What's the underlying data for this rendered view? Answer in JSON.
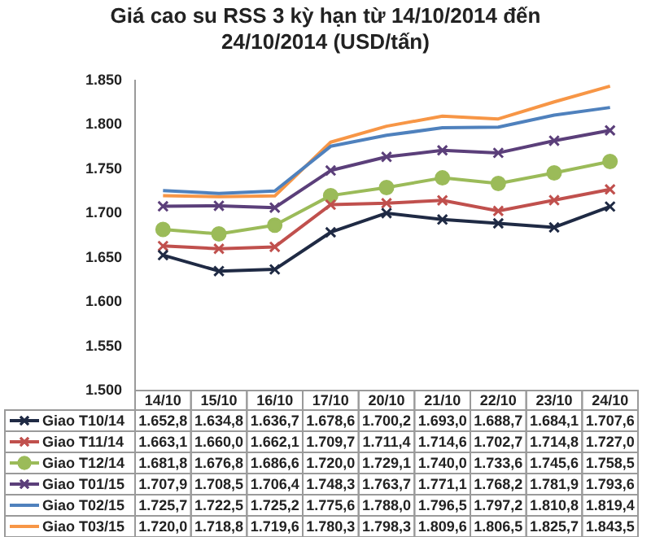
{
  "chart_data": {
    "type": "line",
    "title": "Giá cao su RSS 3 kỳ hạn từ 14/10/2014 đến 24/10/2014 (USD/tấn)",
    "categories": [
      "14/10",
      "15/10",
      "16/10",
      "17/10",
      "20/10",
      "21/10",
      "22/10",
      "23/10",
      "24/10"
    ],
    "ylim": [
      1500,
      1850
    ],
    "yticks": [
      {
        "value": 1500,
        "label": "1.500"
      },
      {
        "value": 1550,
        "label": "1.550"
      },
      {
        "value": 1600,
        "label": "1.600"
      },
      {
        "value": 1650,
        "label": "1.650"
      },
      {
        "value": 1700,
        "label": "1.700"
      },
      {
        "value": 1750,
        "label": "1.750"
      },
      {
        "value": 1800,
        "label": "1.800"
      },
      {
        "value": 1850,
        "label": "1.850"
      }
    ],
    "grid": false,
    "legend": "bottom",
    "line_style": "solid",
    "series": [
      {
        "name": "Giao T10/14",
        "color": "#1f2a44",
        "marker": "cross",
        "values": [
          1652.8,
          1634.8,
          1636.7,
          1678.6,
          1700.2,
          1693.0,
          1688.7,
          1684.1,
          1707.6
        ],
        "value_labels": [
          "1.652,8",
          "1.634,8",
          "1.636,7",
          "1.678,6",
          "1.700,2",
          "1.693,0",
          "1.688,7",
          "1.684,1",
          "1.707,6"
        ]
      },
      {
        "name": "Giao T11/14",
        "color": "#c0504d",
        "marker": "cross",
        "values": [
          1663.1,
          1660.0,
          1662.1,
          1709.7,
          1711.4,
          1714.6,
          1702.7,
          1714.8,
          1727.0
        ],
        "value_labels": [
          "1.663,1",
          "1.660,0",
          "1.662,1",
          "1.709,7",
          "1.711,4",
          "1.714,6",
          "1.702,7",
          "1.714,8",
          "1.727,0"
        ]
      },
      {
        "name": "Giao T12/14",
        "color": "#9bbb59",
        "marker": "circle",
        "values": [
          1681.8,
          1676.8,
          1686.6,
          1720.0,
          1729.1,
          1740.0,
          1733.6,
          1745.6,
          1758.5
        ],
        "value_labels": [
          "1.681,8",
          "1.676,8",
          "1.686,6",
          "1.720,0",
          "1.729,1",
          "1.740,0",
          "1.733,6",
          "1.745,6",
          "1.758,5"
        ]
      },
      {
        "name": "Giao T01/15",
        "color": "#5b3f7a",
        "marker": "cross",
        "values": [
          1707.9,
          1708.5,
          1706.4,
          1748.3,
          1763.7,
          1771.1,
          1768.2,
          1781.9,
          1793.6
        ],
        "value_labels": [
          "1.707,9",
          "1.708,5",
          "1.706,4",
          "1.748,3",
          "1.763,7",
          "1.771,1",
          "1.768,2",
          "1.781,9",
          "1.793,6"
        ]
      },
      {
        "name": "Giao T02/15",
        "color": "#4f81bd",
        "marker": "none",
        "values": [
          1725.7,
          1722.5,
          1725.2,
          1775.6,
          1788.0,
          1796.5,
          1797.2,
          1810.8,
          1819.4
        ],
        "value_labels": [
          "1.725,7",
          "1.722,5",
          "1.725,2",
          "1.775,6",
          "1.788,0",
          "1.796,5",
          "1.797,2",
          "1.810,8",
          "1.819,4"
        ]
      },
      {
        "name": "Giao T03/15",
        "color": "#f79646",
        "marker": "none",
        "values": [
          1720.0,
          1718.8,
          1719.6,
          1780.3,
          1798.3,
          1809.6,
          1806.5,
          1825.7,
          1843.5
        ],
        "value_labels": [
          "1.720,0",
          "1.718,8",
          "1.719,6",
          "1.780,3",
          "1.798,3",
          "1.809,6",
          "1.806,5",
          "1.825,7",
          "1.843,5"
        ]
      }
    ]
  }
}
